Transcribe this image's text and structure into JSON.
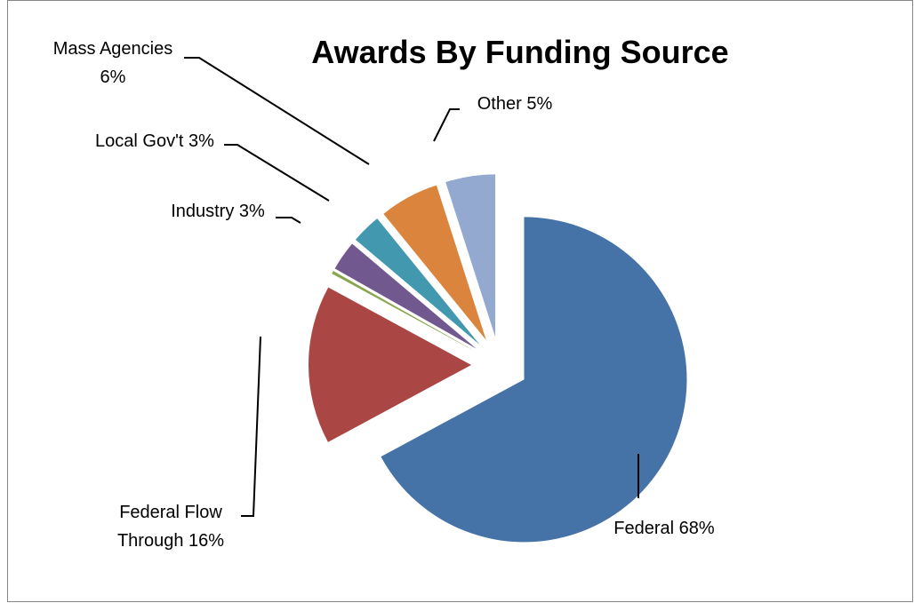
{
  "chart_data": {
    "type": "pie",
    "title": "Awards By Funding Source",
    "slices": [
      {
        "key": "federal",
        "label_lines": [
          "Federal 68%"
        ],
        "value": 68,
        "color": "#4572A7"
      },
      {
        "key": "federal-flow-through",
        "label_lines": [
          "Federal Flow",
          "Through 16%"
        ],
        "value": 16,
        "color": "#AA4643"
      },
      {
        "key": "unlabeled",
        "label_lines": [],
        "value": 0.3,
        "color": "#89A54E"
      },
      {
        "key": "industry",
        "label_lines": [
          "Industry 3%"
        ],
        "value": 3,
        "color": "#71588F"
      },
      {
        "key": "local-govt",
        "label_lines": [
          "Local Gov't 3%"
        ],
        "value": 3,
        "color": "#4198AF"
      },
      {
        "key": "mass-agencies",
        "label_lines": [
          "Mass Agencies",
          "6%"
        ],
        "value": 6,
        "color": "#DB843D"
      },
      {
        "key": "other",
        "label_lines": [
          "Other 5%"
        ],
        "value": 5,
        "color": "#93A9CF"
      }
    ],
    "legend": "none",
    "explode": "all"
  }
}
